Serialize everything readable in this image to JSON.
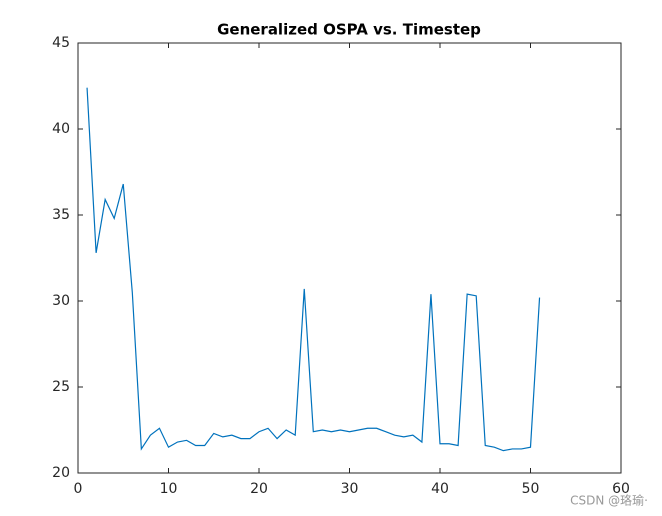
{
  "chart_data": {
    "type": "line",
    "title": "Generalized OSPA vs. Timestep",
    "x": [
      1,
      2,
      3,
      4,
      5,
      6,
      7,
      8,
      9,
      10,
      11,
      12,
      13,
      14,
      15,
      16,
      17,
      18,
      19,
      20,
      21,
      22,
      23,
      24,
      25,
      26,
      27,
      28,
      29,
      30,
      31,
      32,
      33,
      34,
      35,
      36,
      37,
      38,
      39,
      40,
      41,
      42,
      43,
      44,
      45,
      46,
      47,
      48,
      49,
      50,
      51
    ],
    "series": [
      {
        "color": "#0072bd",
        "values": [
          42.4,
          32.8,
          35.9,
          34.8,
          36.8,
          30.5,
          21.4,
          22.2,
          22.6,
          21.5,
          21.8,
          21.9,
          21.6,
          21.6,
          22.3,
          22.1,
          22.2,
          22.0,
          22.0,
          22.4,
          22.6,
          22.0,
          22.5,
          22.2,
          30.7,
          22.4,
          22.5,
          22.4,
          22.5,
          22.4,
          22.5,
          22.6,
          22.6,
          22.4,
          22.2,
          22.1,
          22.2,
          21.8,
          30.4,
          21.7,
          21.7,
          21.6,
          30.4,
          30.3,
          21.6,
          21.5,
          21.3,
          21.4,
          21.4,
          21.5,
          30.2
        ]
      }
    ],
    "xlim": [
      0,
      60
    ],
    "xticks": [
      0,
      10,
      20,
      30,
      40,
      50,
      60
    ],
    "ylim": [
      20,
      45
    ],
    "yticks": [
      20,
      25,
      30,
      35,
      40,
      45
    ]
  },
  "watermark": "CSDN @珞瑜·"
}
